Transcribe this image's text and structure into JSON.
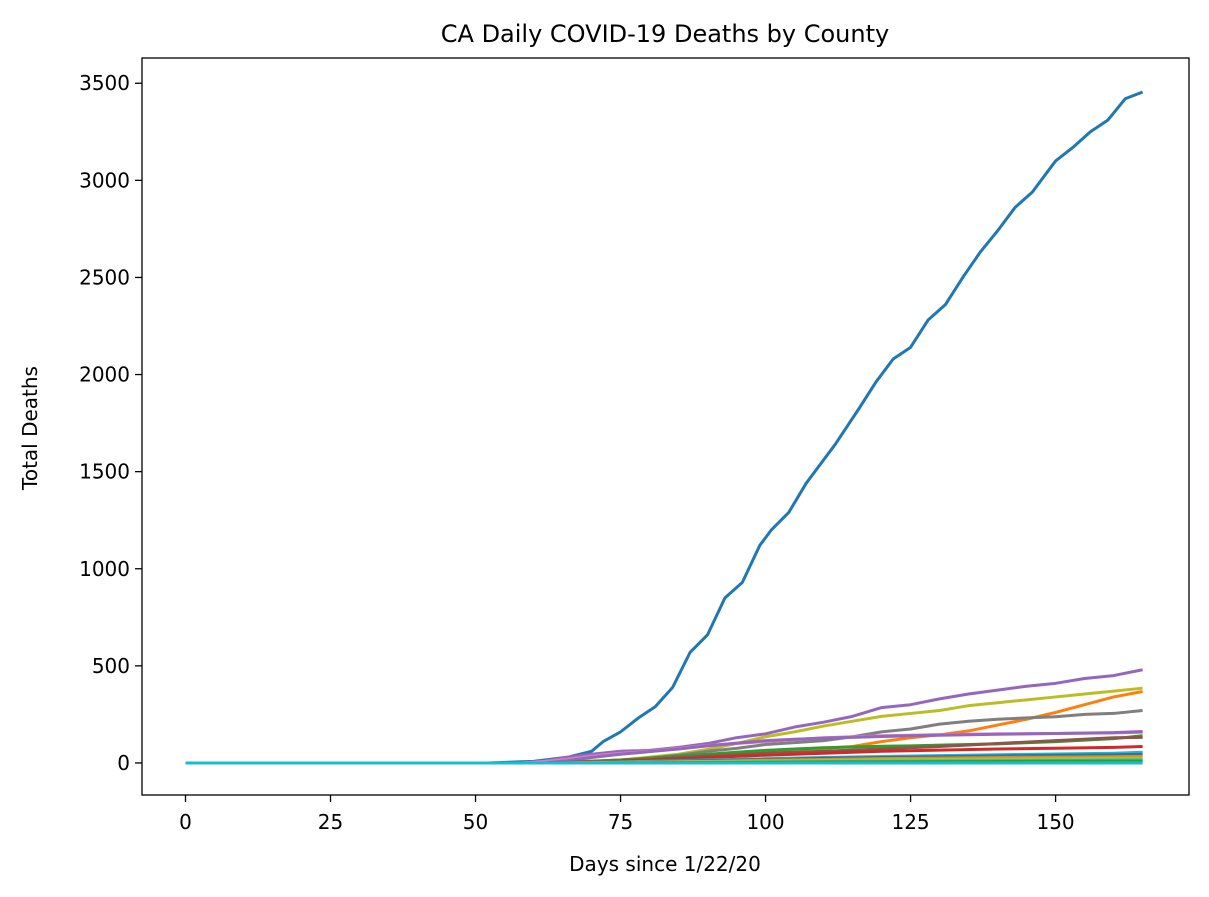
{
  "chart_data": {
    "type": "line",
    "title": "CA Daily COVID-19 Deaths by County",
    "xlabel": "Days since 1/22/20",
    "ylabel": "Total Deaths",
    "xlim": [
      -7.5,
      173
    ],
    "ylim": [
      -165,
      3630
    ],
    "xticks": [
      0,
      25,
      50,
      75,
      100,
      125,
      150
    ],
    "yticks": [
      0,
      500,
      1000,
      1500,
      2000,
      2500,
      3000,
      3500
    ],
    "grid": false,
    "legend": false,
    "series": [
      {
        "color": "#1f77b4",
        "points": [
          [
            0,
            0
          ],
          [
            52,
            0
          ],
          [
            60,
            8
          ],
          [
            66,
            30
          ],
          [
            70,
            60
          ],
          [
            72,
            110
          ],
          [
            75,
            160
          ],
          [
            78,
            230
          ],
          [
            81,
            290
          ],
          [
            84,
            390
          ],
          [
            87,
            570
          ],
          [
            90,
            660
          ],
          [
            93,
            850
          ],
          [
            96,
            930
          ],
          [
            99,
            1120
          ],
          [
            101,
            1200
          ],
          [
            104,
            1290
          ],
          [
            107,
            1440
          ],
          [
            109,
            1520
          ],
          [
            112,
            1640
          ],
          [
            116,
            1820
          ],
          [
            119,
            1960
          ],
          [
            122,
            2080
          ],
          [
            125,
            2140
          ],
          [
            128,
            2280
          ],
          [
            131,
            2360
          ],
          [
            134,
            2500
          ],
          [
            137,
            2630
          ],
          [
            140,
            2740
          ],
          [
            143,
            2860
          ],
          [
            146,
            2940
          ],
          [
            150,
            3100
          ],
          [
            153,
            3170
          ],
          [
            156,
            3250
          ],
          [
            159,
            3310
          ],
          [
            162,
            3420
          ],
          [
            165,
            3455
          ]
        ]
      },
      {
        "color": "#9467bd",
        "points": [
          [
            0,
            0
          ],
          [
            58,
            0
          ],
          [
            62,
            10
          ],
          [
            66,
            30
          ],
          [
            70,
            45
          ],
          [
            75,
            60
          ],
          [
            80,
            65
          ],
          [
            85,
            80
          ],
          [
            90,
            100
          ],
          [
            95,
            130
          ],
          [
            100,
            150
          ],
          [
            105,
            185
          ],
          [
            110,
            210
          ],
          [
            115,
            240
          ],
          [
            120,
            285
          ],
          [
            125,
            300
          ],
          [
            130,
            330
          ],
          [
            135,
            355
          ],
          [
            140,
            375
          ],
          [
            145,
            395
          ],
          [
            150,
            410
          ],
          [
            155,
            435
          ],
          [
            160,
            450
          ],
          [
            165,
            480
          ]
        ]
      },
      {
        "color": "#bcbd22",
        "points": [
          [
            0,
            0
          ],
          [
            60,
            0
          ],
          [
            65,
            5
          ],
          [
            70,
            10
          ],
          [
            75,
            15
          ],
          [
            80,
            30
          ],
          [
            85,
            45
          ],
          [
            90,
            70
          ],
          [
            95,
            100
          ],
          [
            100,
            135
          ],
          [
            105,
            160
          ],
          [
            110,
            190
          ],
          [
            115,
            215
          ],
          [
            120,
            240
          ],
          [
            125,
            255
          ],
          [
            130,
            270
          ],
          [
            135,
            295
          ],
          [
            140,
            310
          ],
          [
            145,
            325
          ],
          [
            150,
            340
          ],
          [
            155,
            355
          ],
          [
            160,
            370
          ],
          [
            165,
            385
          ]
        ]
      },
      {
        "color": "#ff7f0e",
        "points": [
          [
            0,
            0
          ],
          [
            60,
            0
          ],
          [
            65,
            3
          ],
          [
            70,
            8
          ],
          [
            75,
            15
          ],
          [
            80,
            22
          ],
          [
            85,
            30
          ],
          [
            90,
            40
          ],
          [
            95,
            50
          ],
          [
            100,
            60
          ],
          [
            105,
            70
          ],
          [
            110,
            75
          ],
          [
            115,
            85
          ],
          [
            120,
            110
          ],
          [
            125,
            130
          ],
          [
            130,
            145
          ],
          [
            135,
            165
          ],
          [
            140,
            195
          ],
          [
            145,
            225
          ],
          [
            150,
            260
          ],
          [
            155,
            300
          ],
          [
            160,
            340
          ],
          [
            165,
            368
          ]
        ]
      },
      {
        "color": "#7f7f7f",
        "points": [
          [
            0,
            0
          ],
          [
            60,
            0
          ],
          [
            65,
            3
          ],
          [
            70,
            8
          ],
          [
            75,
            15
          ],
          [
            80,
            25
          ],
          [
            85,
            40
          ],
          [
            90,
            60
          ],
          [
            95,
            75
          ],
          [
            100,
            95
          ],
          [
            105,
            105
          ],
          [
            110,
            115
          ],
          [
            115,
            135
          ],
          [
            120,
            160
          ],
          [
            125,
            175
          ],
          [
            130,
            200
          ],
          [
            135,
            215
          ],
          [
            140,
            225
          ],
          [
            145,
            232
          ],
          [
            150,
            238
          ],
          [
            155,
            250
          ],
          [
            160,
            255
          ],
          [
            165,
            270
          ]
        ]
      },
      {
        "color": "#e377c2",
        "points": [
          [
            0,
            0
          ],
          [
            58,
            0
          ],
          [
            62,
            8
          ],
          [
            66,
            20
          ],
          [
            70,
            35
          ],
          [
            75,
            50
          ],
          [
            80,
            60
          ],
          [
            85,
            75
          ],
          [
            90,
            90
          ],
          [
            95,
            100
          ],
          [
            100,
            110
          ],
          [
            105,
            120
          ],
          [
            110,
            130
          ],
          [
            115,
            135
          ],
          [
            120,
            140
          ],
          [
            125,
            143
          ],
          [
            130,
            146
          ],
          [
            140,
            150
          ],
          [
            150,
            152
          ],
          [
            160,
            155
          ],
          [
            165,
            158
          ]
        ]
      },
      {
        "color": "#9467bd",
        "points": [
          [
            0,
            0
          ],
          [
            62,
            0
          ],
          [
            66,
            12
          ],
          [
            70,
            28
          ],
          [
            75,
            45
          ],
          [
            80,
            58
          ],
          [
            85,
            72
          ],
          [
            90,
            88
          ],
          [
            95,
            102
          ],
          [
            100,
            115
          ],
          [
            105,
            122
          ],
          [
            110,
            128
          ],
          [
            115,
            132
          ],
          [
            120,
            136
          ],
          [
            125,
            140
          ],
          [
            130,
            143
          ],
          [
            140,
            148
          ],
          [
            150,
            152
          ],
          [
            160,
            156
          ],
          [
            165,
            162
          ]
        ]
      },
      {
        "color": "#2ca02c",
        "points": [
          [
            0,
            0
          ],
          [
            62,
            0
          ],
          [
            66,
            3
          ],
          [
            70,
            8
          ],
          [
            75,
            15
          ],
          [
            80,
            25
          ],
          [
            85,
            35
          ],
          [
            90,
            45
          ],
          [
            95,
            55
          ],
          [
            100,
            65
          ],
          [
            105,
            72
          ],
          [
            110,
            78
          ],
          [
            115,
            82
          ],
          [
            120,
            86
          ],
          [
            125,
            88
          ],
          [
            130,
            92
          ],
          [
            140,
            98
          ],
          [
            150,
            110
          ],
          [
            160,
            125
          ],
          [
            165,
            140
          ]
        ]
      },
      {
        "color": "#8c564b",
        "points": [
          [
            0,
            0
          ],
          [
            62,
            0
          ],
          [
            68,
            4
          ],
          [
            75,
            10
          ],
          [
            80,
            18
          ],
          [
            90,
            35
          ],
          [
            100,
            50
          ],
          [
            110,
            60
          ],
          [
            120,
            72
          ],
          [
            130,
            85
          ],
          [
            140,
            100
          ],
          [
            150,
            115
          ],
          [
            160,
            130
          ],
          [
            165,
            132
          ]
        ]
      },
      {
        "color": "#d62728",
        "points": [
          [
            0,
            0
          ],
          [
            62,
            0
          ],
          [
            70,
            5
          ],
          [
            80,
            15
          ],
          [
            90,
            28
          ],
          [
            100,
            40
          ],
          [
            110,
            50
          ],
          [
            120,
            60
          ],
          [
            130,
            66
          ],
          [
            140,
            72
          ],
          [
            150,
            76
          ],
          [
            160,
            80
          ],
          [
            165,
            85
          ]
        ]
      },
      {
        "color": "#17becf",
        "points": [
          [
            0,
            0
          ],
          [
            62,
            0
          ],
          [
            70,
            3
          ],
          [
            80,
            8
          ],
          [
            90,
            15
          ],
          [
            100,
            22
          ],
          [
            110,
            28
          ],
          [
            120,
            33
          ],
          [
            130,
            38
          ],
          [
            140,
            42
          ],
          [
            150,
            46
          ],
          [
            160,
            50
          ],
          [
            165,
            55
          ]
        ]
      },
      {
        "color": "#1f77b4",
        "points": [
          [
            0,
            0
          ],
          [
            62,
            0
          ],
          [
            70,
            2
          ],
          [
            80,
            6
          ],
          [
            90,
            12
          ],
          [
            100,
            18
          ],
          [
            110,
            24
          ],
          [
            120,
            28
          ],
          [
            130,
            32
          ],
          [
            140,
            36
          ],
          [
            150,
            40
          ],
          [
            160,
            42
          ],
          [
            165,
            45
          ]
        ]
      },
      {
        "color": "#ff7f0e",
        "points": [
          [
            0,
            0
          ],
          [
            65,
            0
          ],
          [
            75,
            3
          ],
          [
            90,
            8
          ],
          [
            100,
            14
          ],
          [
            110,
            18
          ],
          [
            120,
            22
          ],
          [
            130,
            25
          ],
          [
            140,
            28
          ],
          [
            150,
            30
          ],
          [
            160,
            32
          ],
          [
            165,
            34
          ]
        ]
      },
      {
        "color": "#bcbd22",
        "points": [
          [
            0,
            0
          ],
          [
            65,
            0
          ],
          [
            80,
            4
          ],
          [
            95,
            8
          ],
          [
            110,
            12
          ],
          [
            120,
            16
          ],
          [
            130,
            18
          ],
          [
            140,
            20
          ],
          [
            150,
            22
          ],
          [
            160,
            24
          ],
          [
            165,
            25
          ]
        ]
      },
      {
        "color": "#17becf",
        "points": [
          [
            0,
            0
          ],
          [
            70,
            0
          ],
          [
            85,
            2
          ],
          [
            100,
            5
          ],
          [
            115,
            8
          ],
          [
            130,
            10
          ],
          [
            145,
            12
          ],
          [
            160,
            14
          ],
          [
            165,
            15
          ]
        ]
      },
      {
        "color": "#2ca02c",
        "points": [
          [
            0,
            0
          ],
          [
            70,
            0
          ],
          [
            90,
            2
          ],
          [
            110,
            4
          ],
          [
            130,
            6
          ],
          [
            150,
            8
          ],
          [
            165,
            9
          ]
        ]
      },
      {
        "color": "#17becf",
        "points": [
          [
            0,
            0
          ],
          [
            165,
            0
          ]
        ]
      }
    ]
  }
}
